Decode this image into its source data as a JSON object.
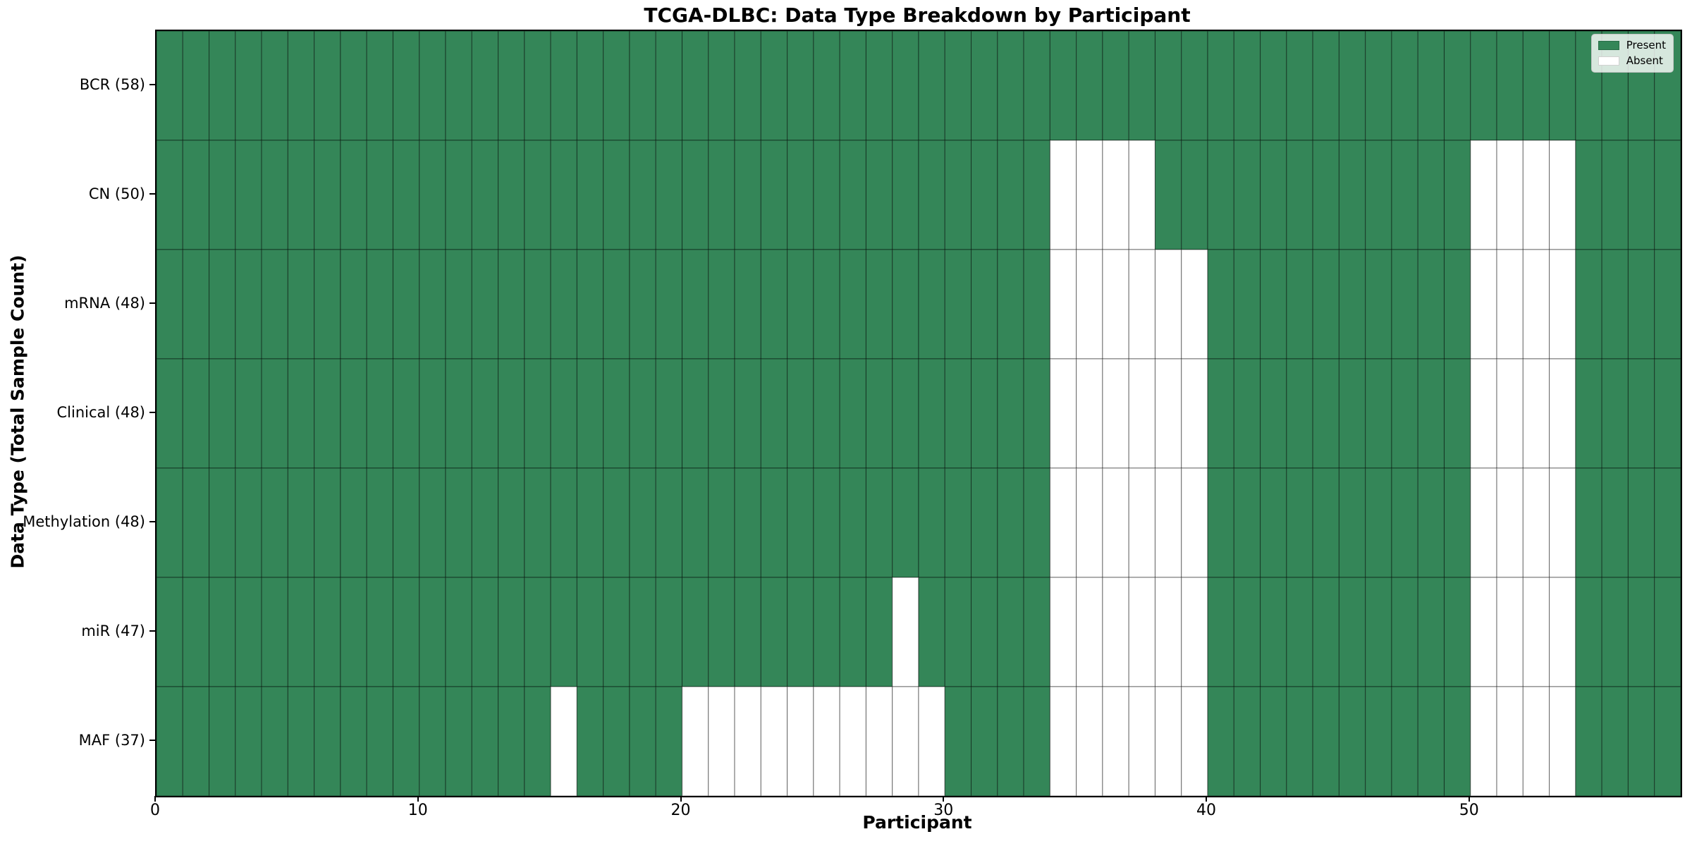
{
  "title": "TCGA-DLBC: Data Type Breakdown by Participant",
  "xlabel": "Participant",
  "ylabel": "Data Type (Total Sample Count)",
  "legend": {
    "present_label": "Present",
    "absent_label": "Absent"
  },
  "colors": {
    "present": "#348658",
    "absent": "#ffffff",
    "cell_edge": "rgba(0,0,0,0.45)",
    "spine": "#000000"
  },
  "chart_data": {
    "type": "heatmap",
    "title": "TCGA-DLBC: Data Type Breakdown by Participant",
    "xlabel": "Participant",
    "ylabel": "Data Type (Total Sample Count)",
    "n_participants": 58,
    "xlim": [
      0,
      58
    ],
    "x_ticks": [
      0,
      10,
      20,
      30,
      40,
      50
    ],
    "legend_entries": [
      "Present",
      "Absent"
    ],
    "legend_position": "upper right",
    "grid": "cell-borders",
    "rows": [
      {
        "label": "BCR (58)",
        "name": "BCR",
        "total_present": 58,
        "absent_participants": []
      },
      {
        "label": "CN (50)",
        "name": "CN",
        "total_present": 50,
        "absent_participants": [
          34,
          35,
          36,
          37,
          50,
          51,
          52,
          53
        ]
      },
      {
        "label": "mRNA (48)",
        "name": "mRNA",
        "total_present": 48,
        "absent_participants": [
          34,
          35,
          36,
          37,
          38,
          39,
          50,
          51,
          52,
          53
        ]
      },
      {
        "label": "Clinical (48)",
        "name": "Clinical",
        "total_present": 48,
        "absent_participants": [
          34,
          35,
          36,
          37,
          38,
          39,
          50,
          51,
          52,
          53
        ]
      },
      {
        "label": "Methylation (48)",
        "name": "Methylation",
        "total_present": 48,
        "absent_participants": [
          34,
          35,
          36,
          37,
          38,
          39,
          50,
          51,
          52,
          53
        ]
      },
      {
        "label": "miR (47)",
        "name": "miR",
        "total_present": 47,
        "absent_participants": [
          28,
          34,
          35,
          36,
          37,
          38,
          39,
          50,
          51,
          52,
          53
        ]
      },
      {
        "label": "MAF (37)",
        "name": "MAF",
        "total_present": 37,
        "absent_participants": [
          15,
          20,
          21,
          22,
          23,
          24,
          25,
          26,
          27,
          28,
          29,
          34,
          35,
          36,
          37,
          38,
          39,
          50,
          51,
          52,
          53
        ]
      }
    ]
  }
}
